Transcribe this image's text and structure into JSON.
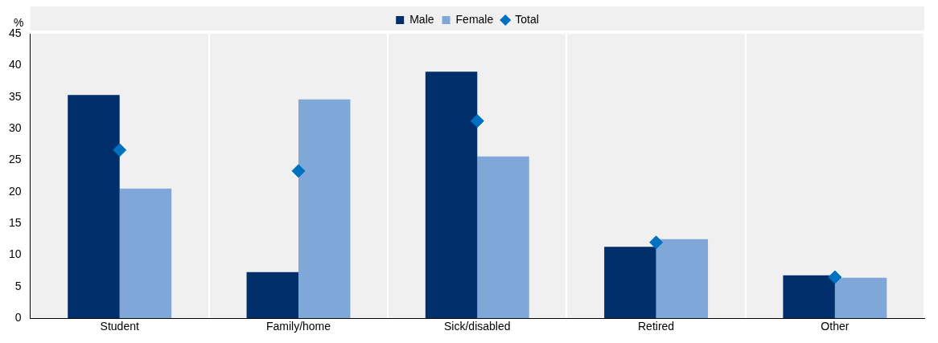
{
  "chart_data": {
    "type": "bar",
    "ylabel": "%",
    "categories": [
      "Student",
      "Family/home",
      "Sick/disabled",
      "Retired",
      "Other"
    ],
    "series": [
      {
        "name": "Male",
        "color": "#002f6c",
        "values": [
          35.3,
          7.3,
          39.0,
          11.3,
          6.8
        ]
      },
      {
        "name": "Female",
        "color": "#7fa8d9",
        "values": [
          20.5,
          34.6,
          25.6,
          12.5,
          6.4
        ]
      },
      {
        "name": "Total",
        "type": "scatter",
        "marker": "diamond",
        "color": "#0070c0",
        "values": [
          26.6,
          23.3,
          31.2,
          12.0,
          6.5
        ]
      }
    ],
    "ylim": [
      0,
      45
    ],
    "yticks": [
      0,
      5,
      10,
      15,
      20,
      25,
      30,
      35,
      40,
      45
    ],
    "grid": "x",
    "legend": "top"
  }
}
